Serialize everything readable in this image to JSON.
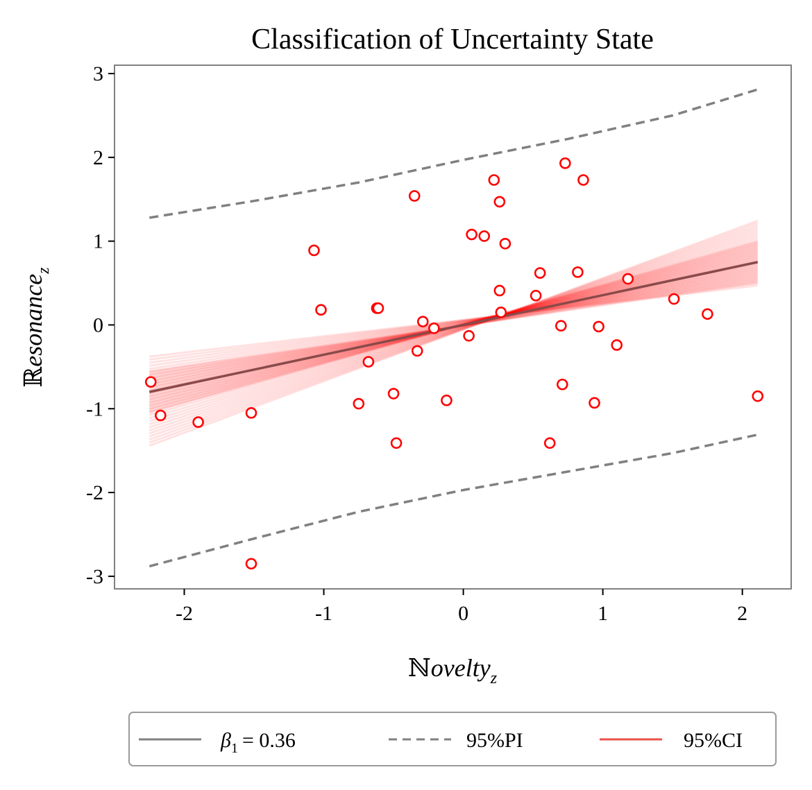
{
  "chart_data": {
    "type": "scatter",
    "title": "Classification of Uncertainty State",
    "xlabel": {
      "prefix": "ℕ",
      "main": "ovelty",
      "sub": "z"
    },
    "ylabel": {
      "prefix": "ℝ",
      "main": "esonance",
      "sub": "z"
    },
    "xlim": [
      -2.5,
      2.35
    ],
    "ylim": [
      -3.15,
      3.1
    ],
    "xticks": [
      -2,
      -1,
      0,
      1,
      2
    ],
    "xtick_labels": [
      "-2",
      "-1",
      "0",
      "1",
      "2"
    ],
    "yticks": [
      -3,
      -2,
      -1,
      0,
      1,
      2,
      3
    ],
    "ytick_labels": [
      "-3",
      "-2",
      "-1",
      "0",
      "1",
      "2",
      "3"
    ],
    "grid": false,
    "points": [
      {
        "x": -2.24,
        "y": -0.68
      },
      {
        "x": -2.17,
        "y": -1.08
      },
      {
        "x": -1.9,
        "y": -1.16
      },
      {
        "x": -1.52,
        "y": -1.05
      },
      {
        "x": -1.52,
        "y": -2.85
      },
      {
        "x": -1.07,
        "y": 0.89
      },
      {
        "x": -1.02,
        "y": 0.18
      },
      {
        "x": -0.75,
        "y": -0.94
      },
      {
        "x": -0.68,
        "y": -0.44
      },
      {
        "x": -0.62,
        "y": 0.2
      },
      {
        "x": -0.61,
        "y": 0.2
      },
      {
        "x": -0.5,
        "y": -0.82
      },
      {
        "x": -0.48,
        "y": -1.41
      },
      {
        "x": -0.35,
        "y": 1.54
      },
      {
        "x": -0.33,
        "y": -0.31
      },
      {
        "x": -0.29,
        "y": 0.04
      },
      {
        "x": -0.21,
        "y": -0.04
      },
      {
        "x": -0.12,
        "y": -0.9
      },
      {
        "x": 0.04,
        "y": -0.13
      },
      {
        "x": 0.06,
        "y": 1.08
      },
      {
        "x": 0.15,
        "y": 1.06
      },
      {
        "x": 0.22,
        "y": 1.73
      },
      {
        "x": 0.26,
        "y": 1.47
      },
      {
        "x": 0.26,
        "y": 0.41
      },
      {
        "x": 0.27,
        "y": 0.15
      },
      {
        "x": 0.3,
        "y": 0.97
      },
      {
        "x": 0.52,
        "y": 0.35
      },
      {
        "x": 0.55,
        "y": 0.62
      },
      {
        "x": 0.62,
        "y": -1.41
      },
      {
        "x": 0.7,
        "y": -0.01
      },
      {
        "x": 0.71,
        "y": -0.71
      },
      {
        "x": 0.73,
        "y": 1.93
      },
      {
        "x": 0.82,
        "y": 0.63
      },
      {
        "x": 0.86,
        "y": 1.73
      },
      {
        "x": 0.94,
        "y": -0.93
      },
      {
        "x": 0.97,
        "y": -0.02
      },
      {
        "x": 1.1,
        "y": -0.24
      },
      {
        "x": 1.18,
        "y": 0.55
      },
      {
        "x": 1.51,
        "y": 0.31
      },
      {
        "x": 1.75,
        "y": 0.13
      },
      {
        "x": 2.11,
        "y": -0.85
      }
    ],
    "regression": {
      "x_range": [
        -2.25,
        2.11
      ],
      "y_range": [
        -0.8,
        0.75
      ]
    },
    "ci_band": {
      "x_range": [
        -2.25,
        2.11
      ],
      "lower": [
        -1.45,
        0.45
      ],
      "upper": [
        -0.35,
        1.25
      ]
    },
    "pi_upper": {
      "x": [
        -2.25,
        -1.5,
        -0.75,
        0,
        0.75,
        1.5,
        2.11
      ],
      "y": [
        1.28,
        1.48,
        1.7,
        1.97,
        2.22,
        2.5,
        2.81
      ]
    },
    "pi_lower": {
      "x": [
        -2.25,
        -1.5,
        -0.75,
        0,
        0.75,
        1.5,
        2.11
      ],
      "y": [
        -2.88,
        -2.55,
        -2.23,
        -1.97,
        -1.75,
        -1.53,
        -1.31
      ]
    },
    "legend": {
      "position": "bottom",
      "items": [
        {
          "label": "β",
          "sub": "1",
          "suffix": "= 0.36",
          "style": "solid",
          "color": "#808080"
        },
        {
          "label": "95%PI",
          "style": "dashed",
          "color": "#808080"
        },
        {
          "label": "95%CI",
          "style": "solid",
          "color": "#e8524a"
        }
      ]
    },
    "colors": {
      "points": "#ff0000",
      "regression": "#8a4a4a",
      "pi": "#808080",
      "ci": "#ff0000",
      "frame": "#808080"
    }
  }
}
